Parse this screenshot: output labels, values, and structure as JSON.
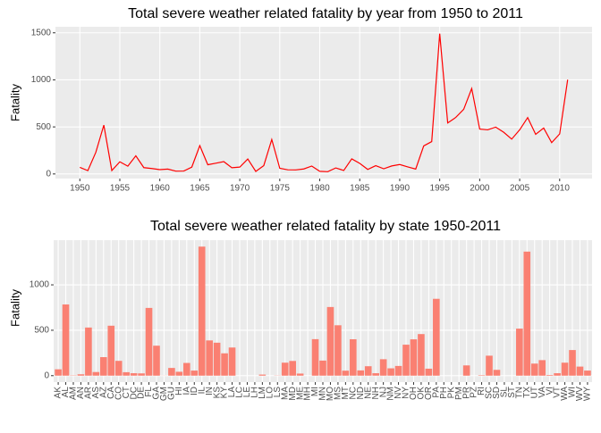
{
  "chart_data": [
    {
      "type": "line",
      "title": "Total severe weather related fatality by year from 1950 to 2011",
      "y_label": "Fatality",
      "color": "#ff0000",
      "grid": true,
      "x": [
        1950,
        1951,
        1952,
        1953,
        1954,
        1955,
        1956,
        1957,
        1958,
        1959,
        1960,
        1961,
        1962,
        1963,
        1964,
        1965,
        1966,
        1967,
        1968,
        1969,
        1970,
        1971,
        1972,
        1973,
        1974,
        1975,
        1976,
        1977,
        1978,
        1979,
        1980,
        1981,
        1982,
        1983,
        1984,
        1985,
        1986,
        1987,
        1988,
        1989,
        1990,
        1991,
        1992,
        1993,
        1994,
        1995,
        1996,
        1997,
        1998,
        1999,
        2000,
        2001,
        2002,
        2003,
        2004,
        2005,
        2006,
        2007,
        2008,
        2009,
        2010,
        2011
      ],
      "values": [
        70,
        35,
        230,
        519,
        36,
        129,
        83,
        193,
        67,
        58,
        46,
        52,
        30,
        31,
        73,
        301,
        98,
        114,
        131,
        66,
        73,
        159,
        27,
        89,
        366,
        60,
        44,
        43,
        53,
        84,
        28,
        24,
        64,
        37,
        160,
        112,
        48,
        88,
        55,
        85,
        100,
        75,
        52,
        298,
        344,
        1491,
        542,
        600,
        687,
        908,
        477,
        469,
        498,
        443,
        370,
        469,
        599,
        421,
        488,
        333,
        425,
        1002
      ],
      "xlim": [
        1946.95,
        2014.05
      ],
      "xticks": [
        1950,
        1955,
        1960,
        1965,
        1970,
        1975,
        1980,
        1985,
        1990,
        1995,
        2000,
        2005,
        2010
      ],
      "ylim": [
        -49,
        1564
      ],
      "yticks": [
        0,
        500,
        1000,
        1500
      ]
    },
    {
      "type": "bar",
      "title": "Total severe weather related fatality by state 1950-2011",
      "y_label": "Fatality",
      "color": "#fa8072",
      "grid": true,
      "categories": [
        "AK",
        "AL",
        "AM",
        "AN",
        "AR",
        "AS",
        "AZ",
        "CA",
        "CO",
        "CT",
        "DC",
        "DE",
        "FL",
        "GA",
        "GM",
        "GU",
        "HI",
        "IA",
        "ID",
        "IL",
        "IN",
        "KS",
        "KY",
        "LA",
        "LC",
        "LE",
        "LH",
        "LM",
        "LO",
        "LS",
        "MA",
        "MD",
        "ME",
        "MH",
        "MI",
        "MN",
        "MO",
        "MS",
        "MT",
        "NC",
        "ND",
        "NE",
        "NH",
        "NJ",
        "NM",
        "NV",
        "NY",
        "OH",
        "OK",
        "OR",
        "PA",
        "PH",
        "PK",
        "PM",
        "PR",
        "PZ",
        "RI",
        "SC",
        "SD",
        "SL",
        "ST",
        "TN",
        "TX",
        "UT",
        "VA",
        "VI",
        "VT",
        "WA",
        "WI",
        "WV",
        "WY"
      ],
      "values": [
        70,
        784,
        3,
        15,
        530,
        40,
        204,
        550,
        163,
        38,
        27,
        25,
        746,
        330,
        1,
        85,
        43,
        140,
        56,
        1421,
        388,
        363,
        246,
        310,
        0,
        0,
        0,
        12,
        0,
        2,
        143,
        162,
        23,
        0,
        402,
        166,
        756,
        555,
        55,
        401,
        58,
        104,
        27,
        181,
        81,
        107,
        341,
        400,
        458,
        77,
        846,
        0,
        0,
        0,
        113,
        0,
        5,
        220,
        64,
        0,
        0,
        518,
        1366,
        133,
        171,
        7,
        27,
        143,
        282,
        100,
        56
      ],
      "ylim": [
        -71,
        1492
      ],
      "yticks": [
        0,
        500,
        1000
      ]
    }
  ]
}
